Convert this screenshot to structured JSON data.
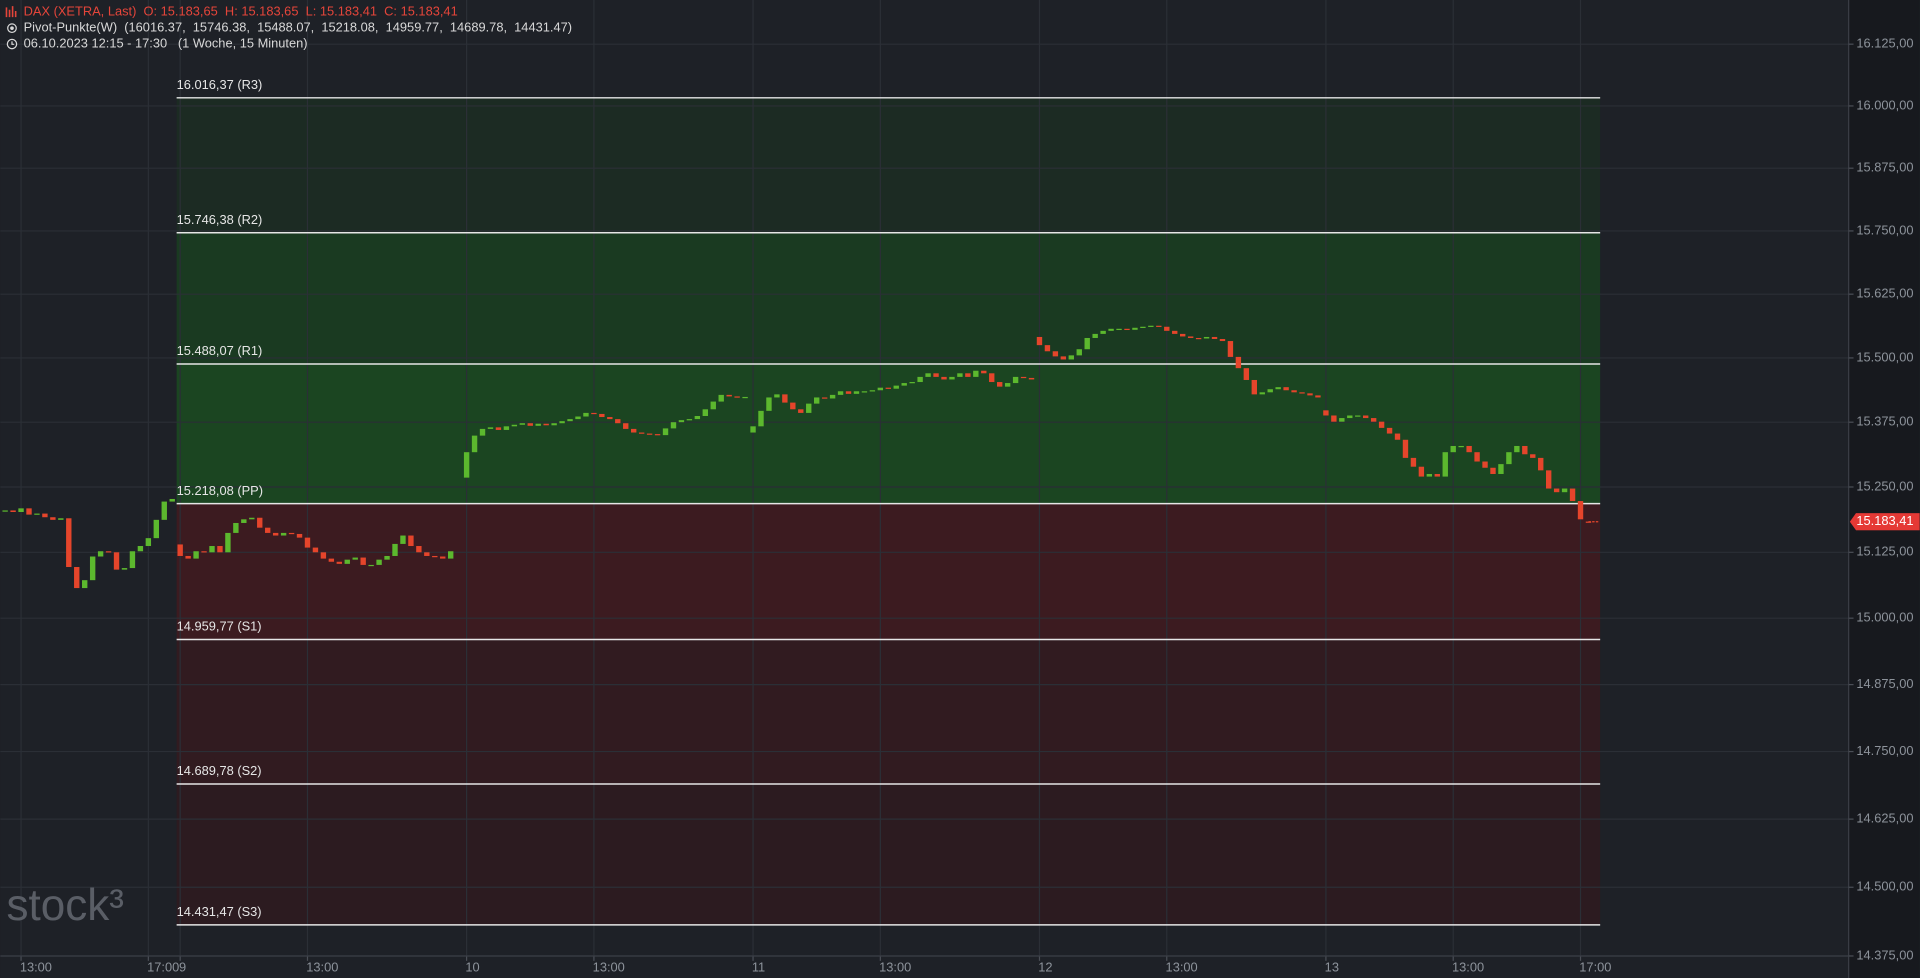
{
  "chart_data": {
    "type": "candlestick",
    "title": "DAX (XETRA, Last)  O: 15.183,65  H: 15.183,65  L: 15.183,41  C: 15.183,41",
    "subtitle": "Pivot-Punkte(W)  (16016.37,  15746.38,  15488.07,  15218.08,  14959.77,  14689.78,  14431.47)",
    "period": "06.10.2023 12:15 - 17:30   (1 Woche, 15 Minuten)",
    "watermark": "stock³",
    "log": true,
    "grid": true,
    "up_color": "#5cb82e",
    "down_color": "#e5452b",
    "xlim": [
      -22.6,
      209.7
    ],
    "xticks": [
      {
        "value": -20,
        "label": "13:00"
      },
      {
        "value": -4,
        "label": "17:00"
      },
      {
        "value": 0,
        "label": "9"
      },
      {
        "value": 16,
        "label": "13:00"
      },
      {
        "value": 36,
        "label": "10"
      },
      {
        "value": 52,
        "label": "13:00"
      },
      {
        "value": 72,
        "label": "11"
      },
      {
        "value": 88,
        "label": "13:00"
      },
      {
        "value": 108,
        "label": "12"
      },
      {
        "value": 124,
        "label": "13:00"
      },
      {
        "value": 144,
        "label": "13"
      },
      {
        "value": 160,
        "label": "13:00"
      },
      {
        "value": 176,
        "label": "17:00"
      }
    ],
    "ylim": [
      14375,
      16215
    ],
    "yticks": [
      {
        "value": 14375,
        "label": "14.375,00"
      },
      {
        "value": 14500,
        "label": "14.500,00"
      },
      {
        "value": 14625,
        "label": "14.625,00"
      },
      {
        "value": 14750,
        "label": "14.750,00"
      },
      {
        "value": 14875,
        "label": "14.875,00"
      },
      {
        "value": 15000,
        "label": "15.000,00"
      },
      {
        "value": 15125,
        "label": "15.125,00"
      },
      {
        "value": 15250,
        "label": "15.250,00"
      },
      {
        "value": 15375,
        "label": "15.375,00"
      },
      {
        "value": 15500,
        "label": "15.500,00"
      },
      {
        "value": 15625,
        "label": "15.625,00"
      },
      {
        "value": 15750,
        "label": "15.750,00"
      },
      {
        "value": 15875,
        "label": "15.875,00"
      },
      {
        "value": 16000,
        "label": "16.000,00"
      },
      {
        "value": 16125,
        "label": "16.125,00"
      }
    ],
    "pivots": [
      {
        "value": 16016.37,
        "label": "16.016,37 (R3)"
      },
      {
        "value": 15746.38,
        "label": "15.746,38 (R2)"
      },
      {
        "value": 15488.07,
        "label": "15.488,07 (R1)"
      },
      {
        "value": 15218.08,
        "label": "15.218,08 (PP)"
      },
      {
        "value": 14959.77,
        "label": "14.959,77 (S1)"
      },
      {
        "value": 14689.78,
        "label": "14.689,78 (S2)"
      },
      {
        "value": 14431.47,
        "label": "14.431,47 (S3)"
      }
    ],
    "zone_colors": [
      "#1c2b23",
      "#1a3a21",
      "#1b4521",
      "#3c1b20",
      "#311b20",
      "#2c1b20"
    ],
    "last": {
      "value": 15183.41,
      "label": "15.183,41"
    },
    "candles": {
      "x": [
        -22,
        -21,
        -20,
        -19,
        -18,
        -17,
        -16,
        -15,
        -14,
        -13,
        -12,
        -11,
        -10,
        -9,
        -8,
        -7,
        -6,
        -5,
        -4,
        -3,
        -2,
        -1,
        0,
        1,
        2,
        3,
        4,
        5,
        6,
        7,
        8,
        9,
        10,
        11,
        12,
        13,
        14,
        15,
        16,
        17,
        18,
        19,
        20,
        21,
        22,
        23,
        24,
        25,
        26,
        27,
        28,
        29,
        30,
        31,
        32,
        33,
        34,
        36,
        37,
        38,
        39,
        40,
        41,
        42,
        43,
        44,
        45,
        46,
        47,
        48,
        49,
        50,
        51,
        52,
        53,
        54,
        55,
        56,
        57,
        58,
        59,
        60,
        61,
        62,
        63,
        64,
        65,
        66,
        67,
        68,
        69,
        70,
        71,
        72,
        73,
        74,
        75,
        76,
        77,
        78,
        79,
        80,
        81,
        82,
        83,
        84,
        85,
        86,
        87,
        88,
        89,
        90,
        91,
        92,
        93,
        94,
        95,
        96,
        97,
        98,
        99,
        100,
        101,
        102,
        103,
        104,
        105,
        106,
        107,
        108,
        109,
        110,
        111,
        112,
        113,
        114,
        115,
        116,
        117,
        118,
        119,
        120,
        121,
        122,
        123,
        124,
        125,
        126,
        127,
        128,
        129,
        130,
        131,
        132,
        133,
        134,
        135,
        136,
        137,
        138,
        139,
        140,
        141,
        142,
        143,
        144,
        145,
        146,
        147,
        148,
        149,
        150,
        151,
        152,
        153,
        154,
        155,
        156,
        157,
        158,
        159,
        160,
        161,
        162,
        163,
        164,
        165,
        166,
        167,
        168,
        169,
        170,
        171,
        172,
        173,
        174,
        175,
        176,
        177
      ],
      "open": [
        15203,
        15205,
        15202,
        15209,
        15197,
        15199,
        15192,
        15187,
        15190,
        15097,
        15057,
        15072,
        15117,
        15127,
        15125,
        15092,
        15095,
        15127,
        15137,
        15152,
        15187,
        15222,
        15140,
        15118,
        15113,
        15127,
        15125,
        15137,
        15125,
        15162,
        15181,
        15188,
        15191,
        15172,
        15162,
        15157,
        15162,
        15160,
        15153,
        15134,
        15125,
        15113,
        15107,
        15103,
        15111,
        15115,
        15101,
        15101,
        15111,
        15118,
        15141,
        15157,
        15137,
        15125,
        15118,
        15117,
        15113,
        15268,
        15317,
        15349,
        15362,
        15365,
        15360,
        15367,
        15370,
        15373,
        15368,
        15372,
        15369,
        15373,
        15377,
        15381,
        15386,
        15393,
        15391,
        15385,
        15381,
        15373,
        15362,
        15355,
        15353,
        15352,
        15350,
        15363,
        15375,
        15379,
        15381,
        15387,
        15400,
        15415,
        15428,
        15425,
        15423,
        15355,
        15367,
        15397,
        15423,
        15429,
        15413,
        15400,
        15393,
        15411,
        15423,
        15421,
        15428,
        15435,
        15430,
        15435,
        15435,
        15437,
        15442,
        15440,
        15446,
        15451,
        15453,
        15463,
        15470,
        15463,
        15458,
        15463,
        15470,
        15463,
        15475,
        15470,
        15453,
        15444,
        15451,
        15463,
        15461,
        15541,
        15525,
        15513,
        15503,
        15497,
        15505,
        15517,
        15539,
        15547,
        15553,
        15557,
        15557,
        15555,
        15559,
        15561,
        15563,
        15561,
        15553,
        15547,
        15542,
        15539,
        15538,
        15541,
        15537,
        15533,
        15502,
        15480,
        15457,
        15429,
        15433,
        15439,
        15443,
        15437,
        15433,
        15431,
        15427,
        15398,
        15388,
        15376,
        15383,
        15388,
        15388,
        15383,
        15376,
        15364,
        15353,
        15341,
        15306,
        15289,
        15270,
        15275,
        15270,
        15317,
        15329,
        15329,
        15317,
        15299,
        15287,
        15275,
        15294,
        15317,
        15329,
        15313,
        15306,
        15282,
        15247,
        15240,
        15247,
        15223,
        15183.65
      ],
      "close": [
        15205,
        15202,
        15209,
        15197,
        15199,
        15192,
        15187,
        15190,
        15097,
        15057,
        15072,
        15117,
        15127,
        15125,
        15092,
        15095,
        15127,
        15137,
        15152,
        15187,
        15222,
        15227,
        15118,
        15113,
        15127,
        15125,
        15137,
        15125,
        15162,
        15181,
        15188,
        15191,
        15172,
        15162,
        15157,
        15162,
        15160,
        15153,
        15134,
        15125,
        15113,
        15107,
        15103,
        15111,
        15115,
        15101,
        15101,
        15111,
        15118,
        15141,
        15157,
        15137,
        15125,
        15118,
        15117,
        15113,
        15127,
        15317,
        15349,
        15362,
        15365,
        15360,
        15367,
        15370,
        15373,
        15368,
        15372,
        15369,
        15373,
        15377,
        15381,
        15386,
        15393,
        15391,
        15385,
        15381,
        15373,
        15362,
        15355,
        15353,
        15352,
        15350,
        15363,
        15375,
        15379,
        15381,
        15387,
        15400,
        15415,
        15428,
        15425,
        15423,
        15424,
        15367,
        15397,
        15423,
        15429,
        15413,
        15400,
        15393,
        15411,
        15423,
        15421,
        15428,
        15435,
        15430,
        15435,
        15435,
        15437,
        15442,
        15440,
        15446,
        15451,
        15453,
        15463,
        15470,
        15463,
        15458,
        15463,
        15470,
        15463,
        15475,
        15470,
        15453,
        15444,
        15451,
        15463,
        15461,
        15458,
        15525,
        15513,
        15503,
        15497,
        15505,
        15517,
        15539,
        15547,
        15553,
        15557,
        15557,
        15555,
        15559,
        15561,
        15563,
        15561,
        15553,
        15547,
        15542,
        15539,
        15538,
        15541,
        15537,
        15533,
        15502,
        15480,
        15457,
        15429,
        15433,
        15439,
        15443,
        15437,
        15433,
        15431,
        15427,
        15423,
        15388,
        15376,
        15383,
        15388,
        15388,
        15383,
        15376,
        15364,
        15353,
        15341,
        15306,
        15289,
        15270,
        15275,
        15270,
        15317,
        15329,
        15329,
        15317,
        15299,
        15287,
        15275,
        15294,
        15317,
        15329,
        15313,
        15306,
        15282,
        15247,
        15240,
        15247,
        15223,
        15188,
        15183.41
      ]
    }
  }
}
